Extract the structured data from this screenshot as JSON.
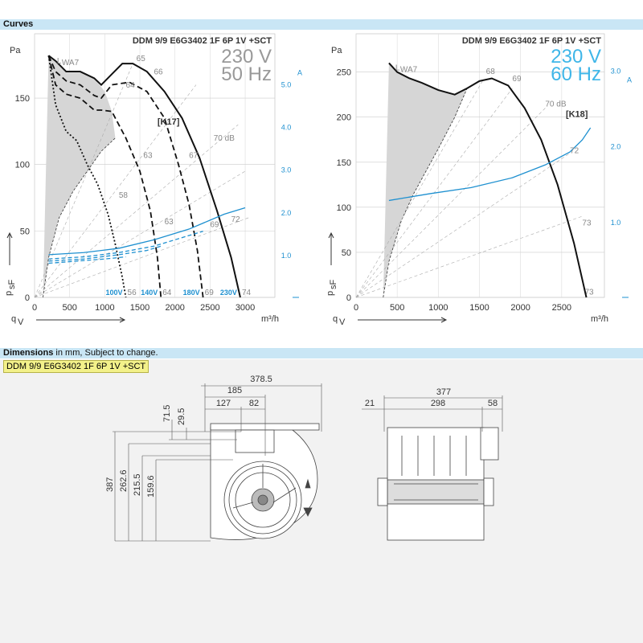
{
  "curves_header": {
    "title": "Curves"
  },
  "dimensions_header": {
    "title": "Dimensions",
    "subtitle": "in mm, Subject to change."
  },
  "model_tag": "DDM 9/9 E6G3402 1F 6P 1V +SCT",
  "colors": {
    "blue": "#1e90d0",
    "header_bar": "#c9e6f5",
    "grey_fill": "#d6d6d6",
    "tag_yellow": "#f3f18a"
  },
  "chart_data": [
    {
      "type": "line",
      "model": "DDM 9/9 E6G3402 1F 6P 1V +SCT",
      "voltage": "230 V",
      "frequency": "50 Hz",
      "ref": "[K17]",
      "ylabel": "Pa",
      "y_axis_symbol": "p",
      "y_axis_subscript": "sF",
      "xlabel": "m³/h",
      "x_axis_symbol": "q",
      "x_axis_subscript": "V",
      "right_axis_unit": "A",
      "lwa_label": "L",
      "lwa_subscript": "WA7",
      "xlim": [
        0,
        3400
      ],
      "ylim": [
        0,
        190
      ],
      "x_ticks": [
        0,
        500,
        1000,
        1500,
        2000,
        2500,
        3000
      ],
      "y_ticks": [
        0,
        50,
        100,
        150
      ],
      "right_ticks": [
        "1.0",
        "2.0",
        "3.0",
        "4.0",
        "5.0"
      ],
      "right_tick_values": [
        1.0,
        2.0,
        3.0,
        4.0,
        5.0
      ],
      "right_max": 5.5,
      "series": [
        {
          "name": "230V",
          "style": "solid",
          "x": [
            200,
            300,
            450,
            650,
            850,
            950,
            1100,
            1250,
            1400,
            1600,
            1850,
            2100,
            2350,
            2600,
            2800,
            2930
          ],
          "y": [
            182,
            178,
            170,
            170,
            165,
            160,
            168,
            176,
            176,
            170,
            155,
            135,
            105,
            65,
            30,
            0
          ]
        },
        {
          "name": "180V",
          "style": "dashed",
          "x": [
            200,
            300,
            450,
            650,
            850,
            950,
            1100,
            1350,
            1600,
            1850,
            2050,
            2200,
            2320,
            2400
          ],
          "y": [
            182,
            170,
            163,
            160,
            152,
            150,
            160,
            162,
            155,
            135,
            100,
            70,
            35,
            0
          ]
        },
        {
          "name": "140V",
          "style": "dashed",
          "x": [
            200,
            300,
            450,
            650,
            850,
            950,
            1100,
            1300,
            1500,
            1650,
            1750,
            1800
          ],
          "y": [
            182,
            160,
            153,
            150,
            141,
            141,
            140,
            120,
            95,
            65,
            30,
            0
          ]
        },
        {
          "name": "100V",
          "style": "dotted",
          "x": [
            200,
            300,
            450,
            600,
            750,
            900,
            1050,
            1150,
            1250,
            1300
          ],
          "y": [
            182,
            145,
            125,
            118,
            100,
            85,
            62,
            40,
            15,
            0
          ]
        }
      ],
      "current_series": [
        {
          "name": "I 230V",
          "x": [
            200,
            700,
            1200,
            1700,
            2200,
            2700,
            3000
          ],
          "right_values": [
            1.0,
            1.05,
            1.15,
            1.35,
            1.6,
            1.95,
            2.1
          ]
        },
        {
          "name": "I 180V",
          "x": [
            200,
            700,
            1200,
            1700,
            2200,
            2400
          ],
          "right_values": [
            0.9,
            0.95,
            1.05,
            1.2,
            1.45,
            1.55
          ]
        },
        {
          "name": "I 140V",
          "x": [
            200,
            700,
            1200,
            1600,
            1800
          ],
          "right_values": [
            0.85,
            0.9,
            1.0,
            1.1,
            1.2
          ]
        },
        {
          "name": "I 100V",
          "x": [
            200,
            600,
            1000,
            1300
          ],
          "right_values": [
            0.8,
            0.85,
            0.9,
            0.95
          ]
        }
      ],
      "grey_upper": {
        "x": [
          200,
          300,
          450,
          650,
          850,
          1000,
          1100,
          1150
        ],
        "y": [
          182,
          178,
          170,
          170,
          165,
          155,
          140,
          120
        ]
      },
      "grey_lower": {
        "x": [
          120,
          200,
          350,
          550,
          750,
          950,
          1150
        ],
        "y": [
          0,
          30,
          60,
          80,
          95,
          110,
          120
        ]
      },
      "iso_lines": [
        {
          "x": [
            0,
            1400
          ],
          "y": [
            0,
            176
          ]
        },
        {
          "x": [
            0,
            2300
          ],
          "y": [
            0,
            160
          ]
        },
        {
          "x": [
            0,
            2900
          ],
          "y": [
            0,
            130
          ]
        },
        {
          "x": [
            0,
            3000
          ],
          "y": [
            0,
            95
          ]
        },
        {
          "x": [
            0,
            3050
          ],
          "y": [
            0,
            60
          ]
        }
      ],
      "db_labels": [
        {
          "text": "65",
          "x": 1450,
          "y": 178
        },
        {
          "text": "66",
          "x": 1700,
          "y": 168
        },
        {
          "text": "64",
          "x": 1300,
          "y": 158
        },
        {
          "text": "63",
          "x": 1550,
          "y": 105
        },
        {
          "text": "67",
          "x": 2200,
          "y": 105
        },
        {
          "text": "70 dB",
          "x": 2550,
          "y": 118
        },
        {
          "text": "58",
          "x": 1200,
          "y": 75
        },
        {
          "text": "63",
          "x": 1850,
          "y": 55
        },
        {
          "text": "69",
          "x": 2500,
          "y": 53
        },
        {
          "text": "72",
          "x": 2800,
          "y": 57
        }
      ],
      "end_labels": [
        {
          "voltage": "100V",
          "db": "56",
          "x": 1300
        },
        {
          "voltage": "140V",
          "db": "64",
          "x": 1800
        },
        {
          "voltage": "180V",
          "db": "69",
          "x": 2400
        },
        {
          "voltage": "230V",
          "db": "74",
          "x": 2930
        }
      ]
    },
    {
      "type": "line",
      "model": "DDM 9/9 E6G3402 1F 6P 1V +SCT",
      "voltage": "230 V",
      "frequency": "60 Hz",
      "ref": "[K18]",
      "ylabel": "Pa",
      "y_axis_symbol": "p",
      "y_axis_subscript": "sF",
      "xlabel": "m³/h",
      "x_axis_symbol": "q",
      "x_axis_subscript": "V",
      "right_axis_unit": "A",
      "lwa_label": "L",
      "lwa_subscript": "WA7",
      "xlim": [
        0,
        3000
      ],
      "ylim": [
        0,
        280
      ],
      "x_ticks": [
        0,
        500,
        1000,
        1500,
        2000,
        2500
      ],
      "y_ticks": [
        0,
        50,
        100,
        150,
        200,
        250
      ],
      "right_ticks": [
        "1.0",
        "2.0",
        "3.0"
      ],
      "right_tick_values": [
        1.0,
        2.0,
        3.0
      ],
      "right_max": 3.0,
      "series": [
        {
          "name": "230V",
          "style": "solid",
          "x": [
            400,
            500,
            650,
            800,
            1000,
            1200,
            1350,
            1500,
            1650,
            1850,
            2050,
            2250,
            2450,
            2650,
            2800
          ],
          "y": [
            260,
            250,
            243,
            238,
            230,
            225,
            232,
            240,
            243,
            235,
            210,
            175,
            125,
            60,
            0
          ]
        }
      ],
      "current_series": [
        {
          "name": "I 230V",
          "x": [
            400,
            900,
            1400,
            1900,
            2300,
            2600,
            2750,
            2850
          ],
          "right_values": [
            1.28,
            1.37,
            1.45,
            1.58,
            1.75,
            1.92,
            2.08,
            2.24
          ]
        }
      ],
      "grey_upper": {
        "x": [
          400,
          500,
          650,
          800,
          1000,
          1200,
          1350
        ],
        "y": [
          260,
          250,
          243,
          238,
          230,
          225,
          232
        ]
      },
      "grey_lower": {
        "x": [
          330,
          400,
          550,
          700,
          850,
          1000,
          1200,
          1350
        ],
        "y": [
          0,
          40,
          85,
          115,
          140,
          165,
          200,
          232
        ]
      },
      "iso_lines": [
        {
          "x": [
            0,
            1550
          ],
          "y": [
            0,
            242
          ]
        },
        {
          "x": [
            0,
            1900
          ],
          "y": [
            0,
            232
          ]
        },
        {
          "x": [
            0,
            2300
          ],
          "y": [
            0,
            210
          ]
        },
        {
          "x": [
            0,
            2600
          ],
          "y": [
            0,
            160
          ]
        },
        {
          "x": [
            0,
            2750
          ],
          "y": [
            0,
            90
          ]
        }
      ],
      "db_labels": [
        {
          "text": "68",
          "x": 1580,
          "y": 248
        },
        {
          "text": "69",
          "x": 1900,
          "y": 240
        },
        {
          "text": "70 dB",
          "x": 2300,
          "y": 212
        },
        {
          "text": "72",
          "x": 2600,
          "y": 160
        },
        {
          "text": "73",
          "x": 2750,
          "y": 80
        },
        {
          "text": "73",
          "x": 2780,
          "y": 3
        }
      ],
      "end_labels": []
    }
  ],
  "dimensions": {
    "front": [
      "378.5",
      "185",
      "127",
      "82",
      "71.5",
      "29.5",
      "387",
      "262.6",
      "215.5",
      "159.6"
    ],
    "side": [
      "377",
      "21",
      "298",
      "58"
    ]
  }
}
